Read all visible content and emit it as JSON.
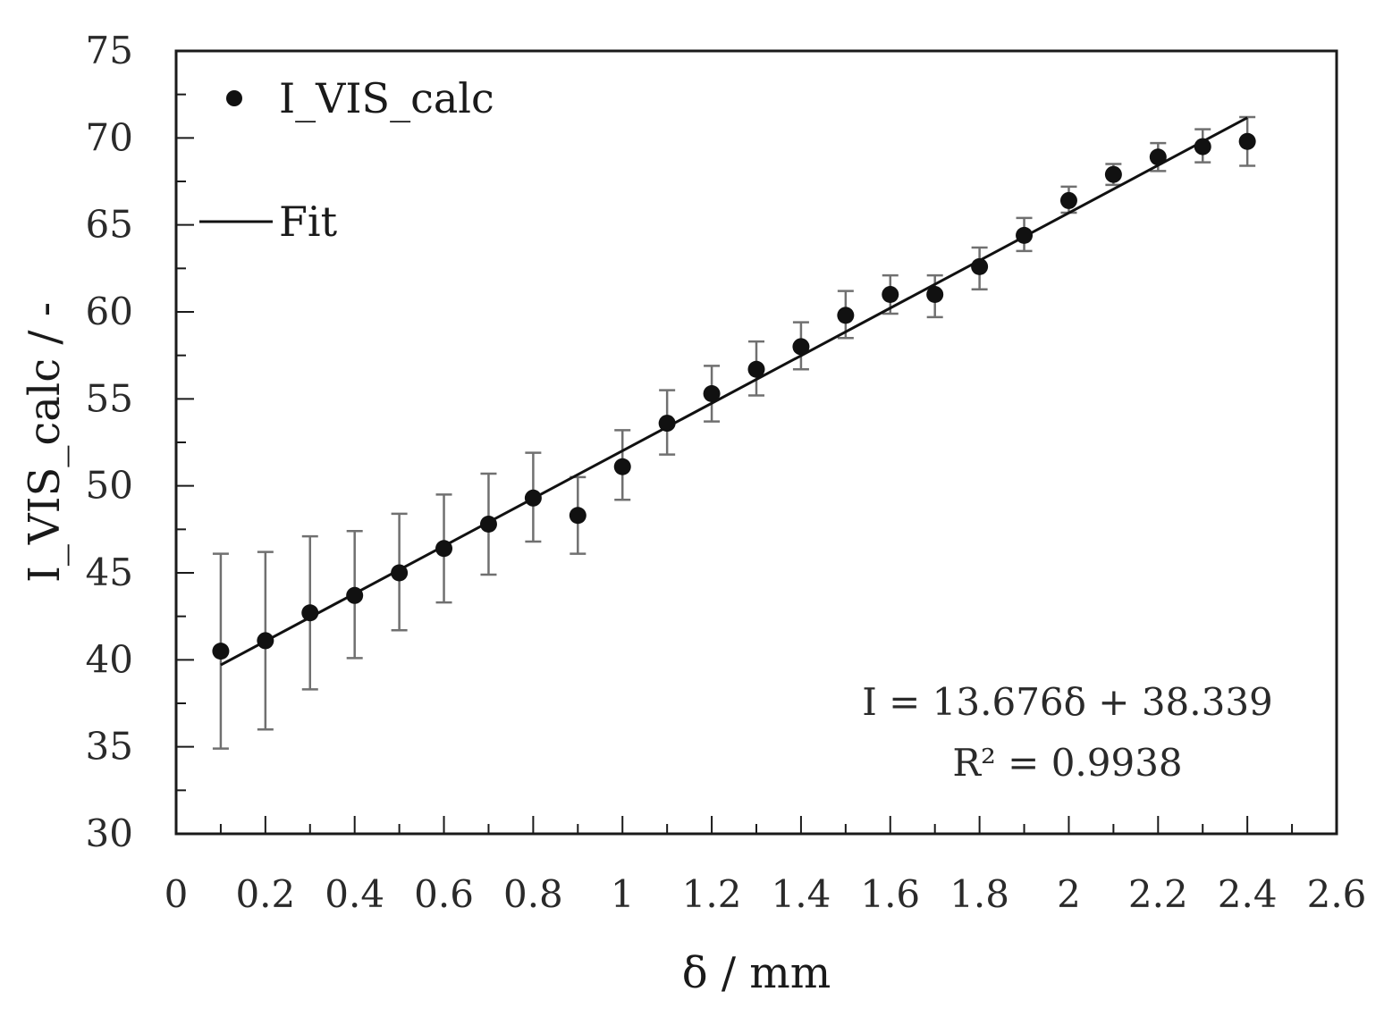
{
  "chart_data": {
    "type": "scatter",
    "title": "",
    "xlabel": "δ / mm",
    "ylabel": "I_VIS_calc / -",
    "xlim": [
      0,
      2.6
    ],
    "ylim": [
      30,
      75
    ],
    "x_ticks": [
      "0",
      "0.2",
      "0.4",
      "0.6",
      "0.8",
      "1",
      "1.2",
      "1.4",
      "1.6",
      "1.8",
      "2",
      "2.2",
      "2.4",
      "2.6"
    ],
    "y_ticks": [
      "30",
      "35",
      "40",
      "45",
      "50",
      "55",
      "60",
      "65",
      "70",
      "75"
    ],
    "x_tick_values": [
      0,
      0.2,
      0.4,
      0.6,
      0.8,
      1.0,
      1.2,
      1.4,
      1.6,
      1.8,
      2.0,
      2.2,
      2.4,
      2.6
    ],
    "y_tick_values": [
      30,
      35,
      40,
      45,
      50,
      55,
      60,
      65,
      70,
      75
    ],
    "grid": false,
    "legend_position": "top-left",
    "series": [
      {
        "name": "I_VIS_calc",
        "kind": "points_with_error_bars",
        "x": [
          0.1,
          0.2,
          0.3,
          0.4,
          0.5,
          0.6,
          0.7,
          0.8,
          0.9,
          1.0,
          1.1,
          1.2,
          1.3,
          1.4,
          1.5,
          1.6,
          1.7,
          1.8,
          1.9,
          2.0,
          2.1,
          2.2,
          2.3,
          2.4
        ],
        "y": [
          40.5,
          41.1,
          42.7,
          43.7,
          45.0,
          46.4,
          47.8,
          49.3,
          48.3,
          51.1,
          53.6,
          55.3,
          56.7,
          58.0,
          59.8,
          61.0,
          61.0,
          62.6,
          64.4,
          66.4,
          67.9,
          68.9,
          69.5,
          69.8
        ],
        "err_low": [
          34.9,
          36.0,
          38.3,
          40.1,
          41.7,
          43.3,
          44.9,
          46.8,
          46.1,
          49.2,
          51.8,
          53.7,
          55.2,
          56.7,
          58.5,
          59.9,
          59.7,
          61.3,
          63.5,
          65.7,
          67.3,
          68.1,
          68.6,
          68.4
        ],
        "err_high": [
          46.1,
          46.2,
          47.1,
          47.4,
          48.4,
          49.5,
          50.7,
          51.9,
          50.5,
          53.2,
          55.5,
          56.9,
          58.3,
          59.4,
          61.2,
          62.1,
          62.1,
          63.7,
          65.4,
          67.2,
          68.5,
          69.7,
          70.5,
          71.2
        ],
        "color": "#111111"
      },
      {
        "name": "Fit",
        "kind": "line",
        "slope": 13.676,
        "intercept": 38.339,
        "x_range": [
          0.1,
          2.4
        ],
        "color": "#111111"
      }
    ],
    "legend": [
      "I_VIS_calc",
      "Fit"
    ],
    "annotations": [
      "I = 13.676δ + 38.339",
      "R² = 0.9938"
    ]
  },
  "colors": {
    "axis": "#1a1a1a",
    "marker": "#111111",
    "error_bar": "#707070",
    "fit_line": "#111111"
  }
}
